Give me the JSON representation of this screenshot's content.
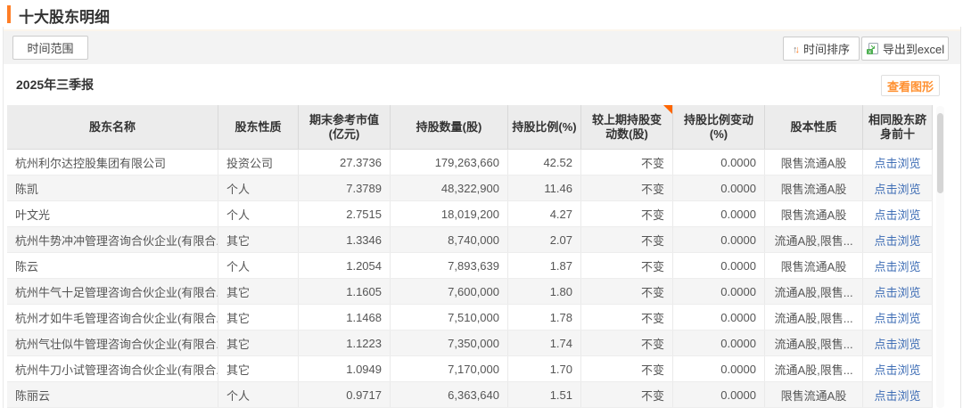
{
  "page_title": "十大股东明细",
  "toolbar": {
    "time_range": "时间范围",
    "time_sort": "时间排序",
    "export_excel": "导出到excel"
  },
  "section": {
    "period": "2025年三季报",
    "view_chart": "查看图形"
  },
  "table": {
    "columns": [
      {
        "label": "股东名称",
        "cell_name": "shareholder-name-cell",
        "align": "left"
      },
      {
        "label": "股东性质",
        "cell_name": "shareholder-type-cell",
        "align": "left"
      },
      {
        "label": "期末参考市值(亿元)",
        "cell_name": "market-value-cell",
        "align": "right"
      },
      {
        "label": "持股数量(股)",
        "cell_name": "shares-held-cell",
        "align": "right"
      },
      {
        "label": "持股比例(%)",
        "cell_name": "holding-ratio-cell",
        "align": "right"
      },
      {
        "label": "较上期持股变动数(股)",
        "cell_name": "shares-change-cell",
        "align": "right",
        "corner_marker": true
      },
      {
        "label": "持股比例变动(%)",
        "cell_name": "ratio-change-cell",
        "align": "right"
      },
      {
        "label": "股本性质",
        "cell_name": "share-capital-type-cell",
        "align": "center"
      },
      {
        "label": "相同股东跻身前十",
        "cell_name": "same-shareholder-top10-cell",
        "align": "center",
        "is_link": true
      }
    ],
    "rows": [
      [
        "杭州利尔达控股集团有限公司",
        "投资公司",
        "27.3736",
        "179,263,660",
        "42.52",
        "不变",
        "0.0000",
        "限售流通A股",
        "点击浏览"
      ],
      [
        "陈凯",
        "个人",
        "7.3789",
        "48,322,900",
        "11.46",
        "不变",
        "0.0000",
        "限售流通A股",
        "点击浏览"
      ],
      [
        "叶文光",
        "个人",
        "2.7515",
        "18,019,200",
        "4.27",
        "不变",
        "0.0000",
        "限售流通A股",
        "点击浏览"
      ],
      [
        "杭州牛势冲冲管理咨询合伙企业(有限合...",
        "其它",
        "1.3346",
        "8,740,000",
        "2.07",
        "不变",
        "0.0000",
        "流通A股,限售...",
        "点击浏览"
      ],
      [
        "陈云",
        "个人",
        "1.2054",
        "7,893,639",
        "1.87",
        "不变",
        "0.0000",
        "限售流通A股",
        "点击浏览"
      ],
      [
        "杭州牛气十足管理咨询合伙企业(有限合...",
        "其它",
        "1.1605",
        "7,600,000",
        "1.80",
        "不变",
        "0.0000",
        "流通A股,限售...",
        "点击浏览"
      ],
      [
        "杭州才如牛毛管理咨询合伙企业(有限合...",
        "其它",
        "1.1468",
        "7,510,000",
        "1.78",
        "不变",
        "0.0000",
        "流通A股,限售...",
        "点击浏览"
      ],
      [
        "杭州气壮似牛管理咨询合伙企业(有限合...",
        "其它",
        "1.1223",
        "7,350,000",
        "1.74",
        "不变",
        "0.0000",
        "流通A股,限售...",
        "点击浏览"
      ],
      [
        "杭州牛刀小试管理咨询合伙企业(有限合...",
        "其它",
        "1.0949",
        "7,170,000",
        "1.70",
        "不变",
        "0.0000",
        "流通A股,限售...",
        "点击浏览"
      ],
      [
        "陈丽云",
        "个人",
        "0.9717",
        "6,363,640",
        "1.51",
        "不变",
        "0.0000",
        "限售流通A股",
        "点击浏览"
      ]
    ]
  },
  "colors": {
    "accent_orange": "#ff7e26",
    "link_blue": "#3e6db5",
    "view_chart_orange": "#ff9030",
    "excel_green": "#4caf50",
    "corner_marker_orange": "#ff6600"
  }
}
